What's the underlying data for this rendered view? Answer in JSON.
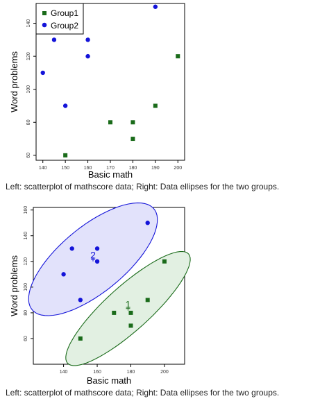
{
  "captions": {
    "top": "Left: scatterplot of mathscore data; Right: Data ellipses for the two groups.",
    "bottom": "Left: scatterplot of mathscore data; Right: Data ellipses for the two groups."
  },
  "colors": {
    "group1": "#1a6b1a",
    "group2": "#1414d9",
    "group1_fill": "#e2f0e2",
    "group2_fill": "#e2e2fb"
  },
  "chart_data": [
    {
      "type": "scatter",
      "xlabel": "Basic math",
      "ylabel": "Word problems",
      "xlim": [
        137,
        203
      ],
      "ylim": [
        57,
        152
      ],
      "xticks": [
        140,
        150,
        160,
        170,
        180,
        190,
        200
      ],
      "yticks": [
        60,
        80,
        100,
        120,
        140
      ],
      "legend": {
        "position": "top-left",
        "entries": [
          "Group1",
          "Group2"
        ]
      },
      "series": [
        {
          "name": "Group1",
          "marker": "square",
          "x": [
            150,
            170,
            180,
            180,
            190,
            200
          ],
          "y": [
            60,
            80,
            80,
            70,
            90,
            120
          ]
        },
        {
          "name": "Group2",
          "marker": "circle",
          "x": [
            140,
            145,
            150,
            160,
            160,
            190
          ],
          "y": [
            110,
            130,
            90,
            130,
            120,
            150
          ]
        }
      ]
    },
    {
      "type": "scatter",
      "xlabel": "Basic math",
      "ylabel": "Word problems",
      "xlim": [
        122,
        212
      ],
      "ylim": [
        40,
        162
      ],
      "xticks": [
        140,
        160,
        180,
        200
      ],
      "yticks": [
        60,
        80,
        100,
        120,
        140,
        160
      ],
      "series": [
        {
          "name": "1",
          "marker": "square",
          "x": [
            150,
            170,
            180,
            180,
            190,
            200
          ],
          "y": [
            60,
            80,
            80,
            70,
            90,
            120
          ]
        },
        {
          "name": "2",
          "marker": "circle",
          "x": [
            140,
            145,
            150,
            160,
            160,
            190
          ],
          "y": [
            110,
            130,
            90,
            130,
            120,
            150
          ]
        }
      ],
      "ellipses": [
        {
          "label": "1",
          "series": "1"
        },
        {
          "label": "2",
          "series": "2"
        }
      ]
    }
  ]
}
